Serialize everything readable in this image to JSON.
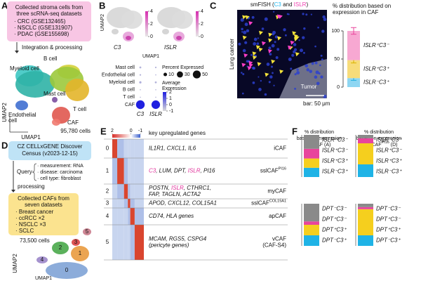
{
  "a": {
    "letter": "A",
    "box": [
      "Collected stroma cells from",
      "three scRNA-seq datasets"
    ],
    "datasets": [
      "· CRC (GSE132465)",
      "· NSCLC (GSE131907)",
      "· PDAC (GSE155698)"
    ],
    "step": "Integration & processing",
    "clusters": {
      "b": "B cell",
      "myeloid": "Myeloid cell",
      "mast": "Mast cell",
      "t": "T cell",
      "endothelial": [
        "Endothelial",
        "cell"
      ],
      "caf": "CAF"
    },
    "cells": "95,780 cells",
    "x_axis": "UMAP1",
    "y_axis": "UMAP2"
  },
  "b": {
    "letter": "B",
    "genes": [
      "C3",
      "ISLR"
    ],
    "scales": [
      {
        "lim": [
          0,
          4
        ],
        "ticks": [
          0,
          2,
          4
        ]
      },
      {
        "lim": [
          0,
          4
        ],
        "ticks": [
          0,
          2,
          4
        ]
      }
    ],
    "x_axis": "UMAP1",
    "y_axis": "UMAP2",
    "dotplot": {
      "rows": [
        "Mast cell",
        "Endothelial cell",
        "Myeloid cell",
        "B cell",
        "T cell",
        "CAF"
      ],
      "columns": [
        "C3",
        "ISLR"
      ],
      "percent": [
        [
          3,
          2
        ],
        [
          2,
          1
        ],
        [
          4,
          3
        ],
        [
          1,
          1
        ],
        [
          1,
          1
        ],
        [
          60,
          58
        ]
      ],
      "average": [
        [
          -0.4,
          -0.4
        ],
        [
          -0.4,
          -0.4
        ],
        [
          -0.3,
          -0.4
        ],
        [
          -0.4,
          -0.4
        ],
        [
          -0.4,
          -0.4
        ],
        [
          2,
          2
        ]
      ],
      "size_title": "Percent Expressed",
      "size_ticks": [
        10,
        30,
        50
      ],
      "color_title": [
        "Average",
        "Expression"
      ],
      "color_lim": [
        -1,
        2
      ],
      "color_ticks": [
        2,
        1,
        0,
        -1
      ]
    }
  },
  "c": {
    "letter": "C",
    "title": [
      {
        "text": "smFISH ("
      },
      {
        "text": "C3",
        "color": "#22b8ef"
      },
      {
        "text": " and "
      },
      {
        "text": "ISLR",
        "color": "#f040b0"
      },
      {
        "text": ")"
      }
    ],
    "tissue": "Lung cancer",
    "region": "Tumor",
    "scale": "bar: 50 μm",
    "chart": {
      "title": [
        "% distribution based on",
        "expression in CAF"
      ],
      "ylim": [
        0,
        100
      ],
      "yticks": [
        0,
        50,
        100
      ],
      "segments": [
        {
          "name": "ISLR⁻C3⁺",
          "color": "#8ed6f2",
          "label_color": "#1fb0e0",
          "value": 16,
          "error": 4
        },
        {
          "name": "ISLR⁺C3⁺",
          "color": "#f7dc7a",
          "label_color": "#d9b000",
          "value": 32,
          "error": 5
        },
        {
          "name": "ISLR⁺C3⁻",
          "color": "#f7a8d2",
          "label_color": "#e8449c",
          "value": 52,
          "error": 6
        }
      ]
    }
  },
  "d": {
    "letter": "D",
    "source": [
      "CZ CELLxGENE Discover",
      "Census (v2023-12-15)"
    ],
    "query": "Query",
    "criteria": [
      "· measurement: RNA",
      "· disease: carcinoma",
      "· cell type: fibroblast"
    ],
    "step": "processing",
    "collected": [
      "Collected CAFs from",
      "seven datasets"
    ],
    "datasets": [
      "· Breast cancer",
      "· ccRCC ×2",
      "· NSCLC ×3",
      "· SCLC"
    ],
    "cells": "73,500 cells",
    "clusters": [
      "0",
      "1",
      "2",
      "3",
      "4",
      "5"
    ],
    "x_axis": "UMAP1",
    "y_axis": "UMAP2"
  },
  "e": {
    "letter": "E",
    "scale_lim": [
      2,
      -1
    ],
    "scale_ticks": [
      2,
      0,
      -1
    ],
    "header": "key upregulated genes",
    "rows": [
      {
        "cluster": "0",
        "genes": [
          [
            {
              "text": "IL1R1, CXCL1, IL6"
            }
          ]
        ],
        "label": [
          [
            {
              "text": "iCAF"
            }
          ]
        ]
      },
      {
        "cluster": "1",
        "genes": [
          [
            {
              "text": "C3",
              "color": "#e0309a"
            },
            {
              "text": ", LUM, DPT, "
            },
            {
              "text": "ISLR",
              "color": "#e0309a"
            },
            {
              "text": ", PI16"
            }
          ]
        ],
        "label": [
          [
            {
              "text": "sslCAF",
              "sup": "PI16"
            }
          ]
        ]
      },
      {
        "cluster": "2",
        "genes": [
          [
            {
              "text": "POSTN, "
            },
            {
              "text": "ISLR",
              "color": "#e0309a"
            },
            {
              "text": ", CTHRC1,"
            }
          ],
          [
            {
              "text": "FAP, TAGLN, ACTA2"
            }
          ]
        ],
        "label": [
          [
            {
              "text": "myCAF"
            }
          ]
        ]
      },
      {
        "cluster": "3",
        "genes": [
          [
            {
              "text": "APOD, CXCL12, COL15A1"
            }
          ]
        ],
        "label": [
          [
            {
              "text": "sslCAF",
              "sup": "COL15A1"
            }
          ]
        ]
      },
      {
        "cluster": "4",
        "genes": [
          [
            {
              "text": "CD74, HLA genes"
            }
          ]
        ],
        "label": [
          [
            {
              "text": "apCAF"
            }
          ]
        ]
      },
      {
        "cluster": "5",
        "genes": [
          [
            {
              "text": "MCAM, RGS5, CSPG4"
            }
          ],
          [
            {
              "text": "(pericyte genes)"
            }
          ]
        ],
        "label": [
          [
            {
              "text": "vCAF"
            }
          ],
          [
            {
              "text": "(CAF-S4)"
            }
          ]
        ]
      }
    ]
  },
  "f": {
    "letter": "F",
    "titles": [
      [
        [
          {
            "text": "% distribution"
          }
        ],
        [
          {
            "text": "based on expression"
          }
        ],
        [
          {
            "text": "in CAF (A)"
          }
        ]
      ],
      [
        [
          {
            "text": "% distribution"
          }
        ],
        [
          {
            "text": "based on expression"
          }
        ],
        [
          {
            "text": "in sslCAF",
            "sup": "PI16"
          },
          {
            "text": " (D)"
          }
        ]
      ]
    ],
    "ylim": [
      0,
      100
    ],
    "charts": [
      {
        "segments": [
          {
            "name": "ISLR⁻C3⁺",
            "color": "#1fb3e6",
            "value": 22
          },
          {
            "name": "ISLR⁺C3⁺",
            "color": "#f5cf1e",
            "value": 22
          },
          {
            "name": "ISLR⁺C3⁻",
            "color": "#e8449c",
            "value": 23
          },
          {
            "name": "ISLR⁻C3⁻",
            "color": "#8a8a8a",
            "value": 33
          }
        ]
      },
      {
        "segments": [
          {
            "name": "ISLR⁻C3⁺",
            "color": "#1fb3e6",
            "value": 30
          },
          {
            "name": "ISLR⁺C3⁺",
            "color": "#f5cf1e",
            "value": 50
          },
          {
            "name": "ISLR⁺C3⁻",
            "color": "#e8449c",
            "value": 12
          },
          {
            "name": "ISLR⁻C3⁻",
            "color": "#8a8a8a",
            "value": 8
          }
        ]
      },
      {
        "segments": [
          {
            "name": "DPT⁻C3⁺",
            "color": "#1fb3e6",
            "value": 25
          },
          {
            "name": "DPT⁺C3⁺",
            "color": "#f5cf1e",
            "value": 25
          },
          {
            "name": "DPT⁺C3⁻",
            "color": "#e8449c",
            "value": 8
          },
          {
            "name": "DPT⁻C3⁻",
            "color": "#8a8a8a",
            "value": 42
          }
        ]
      },
      {
        "segments": [
          {
            "name": "DPT⁻C3⁺",
            "color": "#1fb3e6",
            "value": 25
          },
          {
            "name": "DPT⁺C3⁺",
            "color": "#f5cf1e",
            "value": 62
          },
          {
            "name": "DPT⁺C3⁻",
            "color": "#e8449c",
            "value": 5
          },
          {
            "name": "DPT⁻C3⁻",
            "color": "#8a8a8a",
            "value": 8
          }
        ]
      }
    ]
  }
}
